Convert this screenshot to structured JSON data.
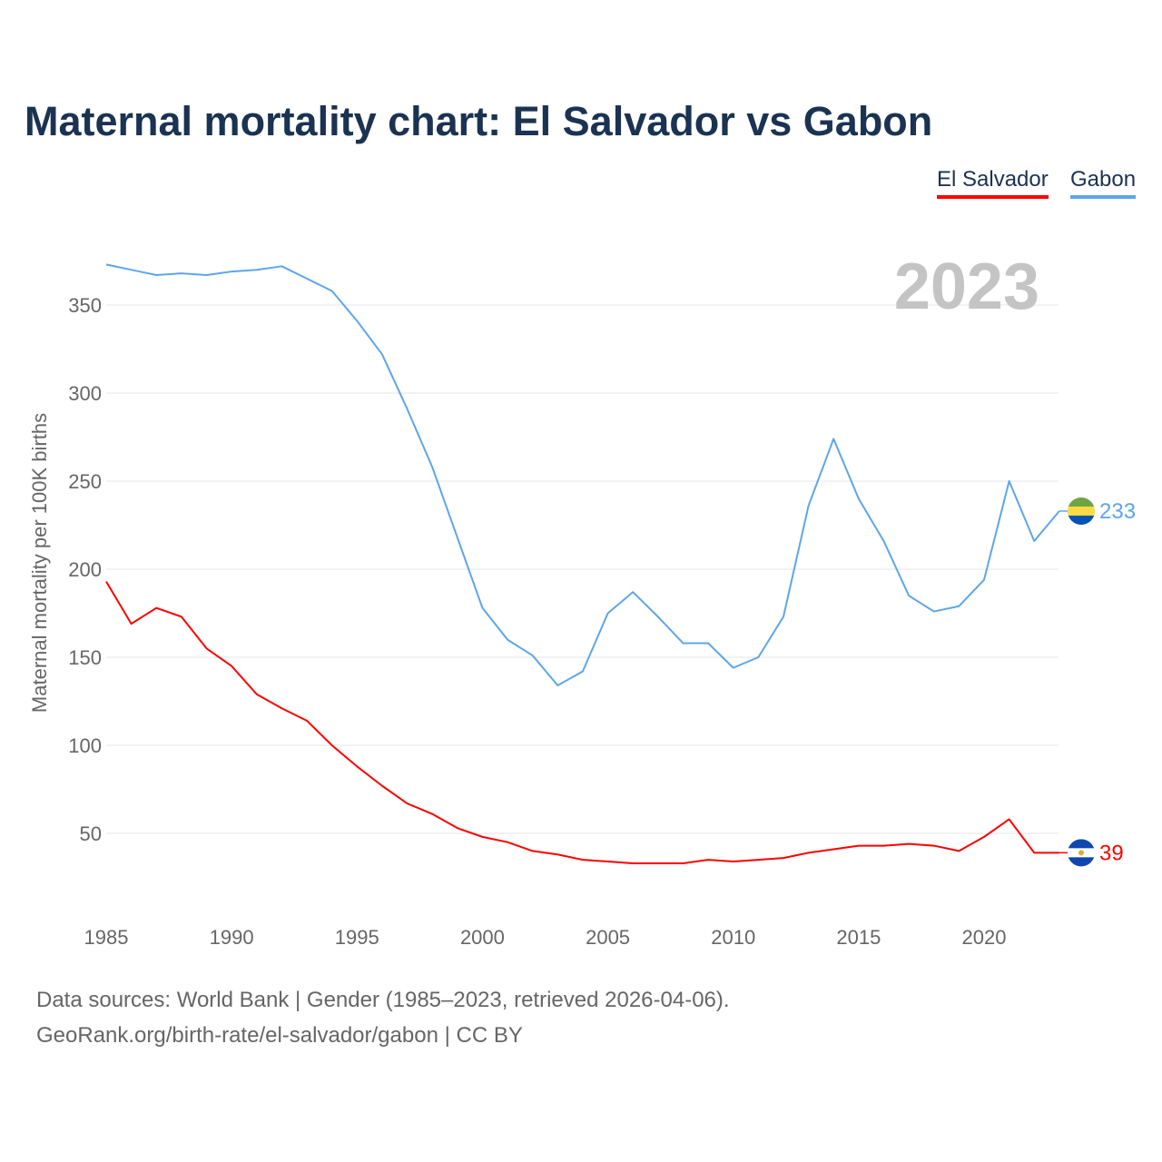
{
  "chart_data": {
    "type": "line",
    "title": "Maternal mortality chart: El Salvador vs Gabon",
    "ylabel": "Maternal mortality per 100K births",
    "xlabel": "",
    "year_watermark": "2023",
    "x": [
      1985,
      1986,
      1987,
      1988,
      1989,
      1990,
      1991,
      1992,
      1993,
      1994,
      1995,
      1996,
      1997,
      1998,
      1999,
      2000,
      2001,
      2002,
      2003,
      2004,
      2005,
      2006,
      2007,
      2008,
      2009,
      2010,
      2011,
      2012,
      2013,
      2014,
      2015,
      2016,
      2017,
      2018,
      2019,
      2020,
      2021,
      2022,
      2023
    ],
    "xticks": [
      "1985",
      "1990",
      "1995",
      "2000",
      "2005",
      "2010",
      "2015",
      "2020"
    ],
    "yticks": [
      "50",
      "100",
      "150",
      "200",
      "250",
      "300",
      "350"
    ],
    "ylim": [
      0,
      350
    ],
    "xlim": [
      1985,
      2023
    ],
    "grid": true,
    "legend_position": "top-right",
    "series": [
      {
        "name": "El Salvador",
        "color": "#ff0000",
        "end_label": "39",
        "values": [
          193,
          169,
          178,
          173,
          155,
          145,
          129,
          121,
          114,
          100,
          88,
          77,
          67,
          61,
          53,
          48,
          45,
          40,
          38,
          35,
          34,
          33,
          33,
          33,
          35,
          34,
          35,
          36,
          39,
          41,
          43,
          43,
          44,
          43,
          40,
          48,
          58,
          39,
          39
        ]
      },
      {
        "name": "Gabon",
        "color": "#5ea5ea",
        "end_label": "233",
        "values": [
          373,
          370,
          367,
          368,
          367,
          369,
          370,
          372,
          365,
          358,
          341,
          322,
          291,
          258,
          218,
          178,
          160,
          151,
          134,
          142,
          175,
          187,
          173,
          158,
          158,
          144,
          150,
          173,
          236,
          274,
          240,
          216,
          185,
          176,
          179,
          194,
          250,
          216,
          233
        ]
      }
    ]
  },
  "footer": {
    "line1": "Data sources: World Bank | Gender (1985–2023, retrieved 2026-04-06).",
    "line2": "GeoRank.org/birth-rate/el-salvador/gabon | CC BY"
  }
}
